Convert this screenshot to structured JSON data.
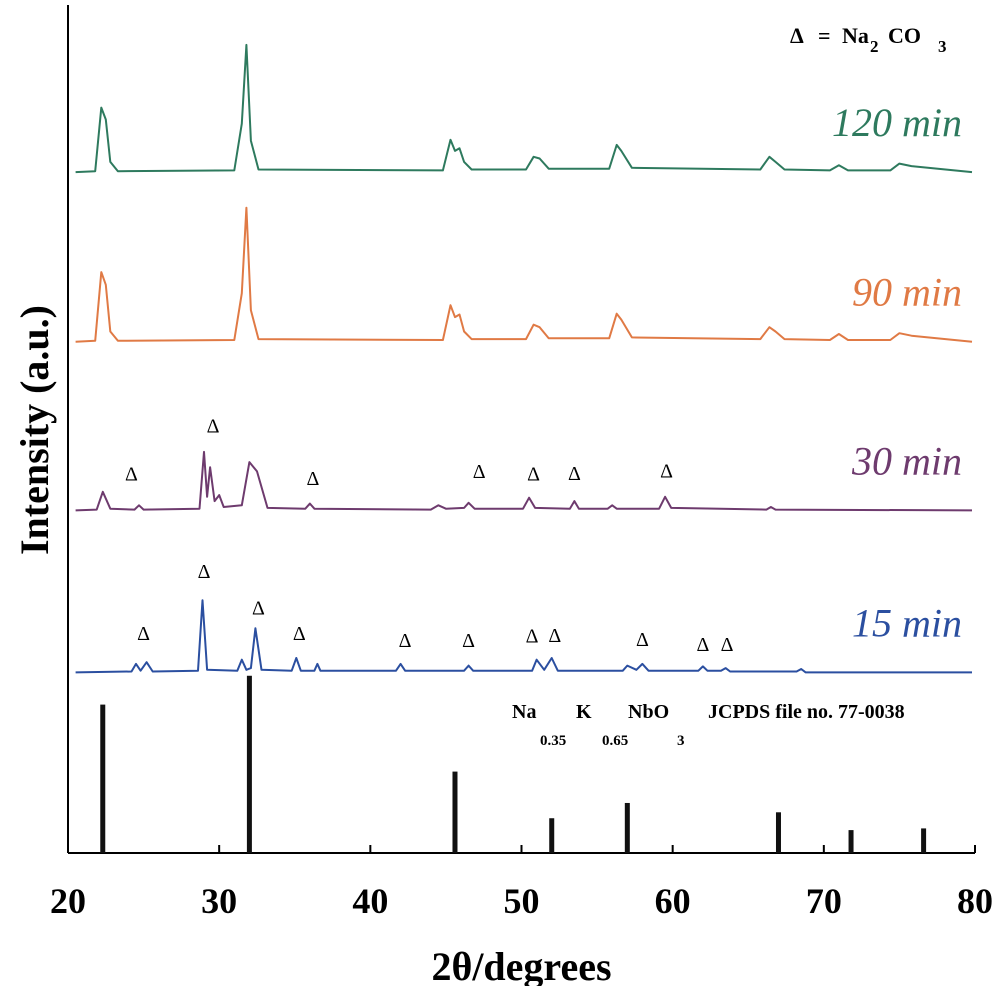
{
  "chart_data": {
    "type": "line",
    "xlabel": "2θ/degrees",
    "ylabel": "Intensity (a.u.)",
    "xlim": [
      20,
      80
    ],
    "xticks": [
      20,
      30,
      40,
      50,
      60,
      70,
      80
    ],
    "ylim": [
      0,
      100
    ],
    "note": [
      "Δ",
      "=",
      "Na",
      "2",
      "CO",
      "3"
    ],
    "series": [
      {
        "name": "120 min",
        "color": "#2e7a5e",
        "x": [
          20.5,
          21.8,
          22.2,
          22.5,
          22.8,
          23.3,
          31.0,
          31.5,
          31.8,
          32.1,
          32.6,
          44.8,
          45.3,
          45.6,
          45.9,
          46.2,
          46.7,
          50.3,
          50.8,
          51.2,
          51.8,
          55.8,
          56.3,
          56.6,
          57.3,
          65.8,
          66.4,
          66.8,
          67.4,
          70.4,
          71.0,
          71.6,
          74.4,
          75.0,
          75.8,
          79.8
        ],
        "values": [
          80.3,
          80.4,
          87.9,
          86.5,
          81.5,
          80.4,
          80.5,
          86,
          95.3,
          84,
          80.6,
          80.5,
          84.1,
          82.8,
          83.1,
          81.5,
          80.6,
          80.6,
          82.1,
          81.9,
          80.7,
          80.7,
          83.5,
          82.8,
          80.8,
          80.6,
          82.1,
          81.5,
          80.6,
          80.5,
          81.1,
          80.5,
          80.5,
          81.3,
          81,
          80.3
        ]
      },
      {
        "name": "90 min",
        "color": "#e07a45",
        "x": [
          20.5,
          21.8,
          22.2,
          22.5,
          22.8,
          23.3,
          31.0,
          31.5,
          31.8,
          32.1,
          32.6,
          44.8,
          45.3,
          45.6,
          45.9,
          46.2,
          46.7,
          50.3,
          50.8,
          51.2,
          51.8,
          55.8,
          56.3,
          56.6,
          57.3,
          65.8,
          66.4,
          66.8,
          67.4,
          70.4,
          71.0,
          71.6,
          74.4,
          75.0,
          75.8,
          79.8
        ],
        "values": [
          60.3,
          60.4,
          68.5,
          67,
          61.5,
          60.4,
          60.5,
          66,
          76.1,
          64,
          60.6,
          60.5,
          64.6,
          63.2,
          63.5,
          61.5,
          60.6,
          60.6,
          62.3,
          62,
          60.7,
          60.7,
          63.6,
          62.9,
          60.8,
          60.6,
          62.0,
          61.5,
          60.6,
          60.5,
          61.2,
          60.5,
          60.5,
          61.3,
          61,
          60.3
        ]
      },
      {
        "name": "30 min",
        "color": "#6e3b6e",
        "x": [
          20.5,
          21.9,
          22.3,
          22.8,
          24.4,
          24.7,
          25.0,
          28.7,
          29.0,
          29.2,
          29.4,
          29.7,
          30.0,
          30.3,
          31.5,
          32.0,
          32.5,
          33.2,
          35.7,
          36.0,
          36.3,
          44.0,
          44.5,
          45.0,
          46.2,
          46.5,
          46.9,
          50.1,
          50.5,
          50.9,
          53.2,
          53.5,
          53.8,
          55.7,
          56.0,
          56.3,
          59.1,
          59.5,
          59.9,
          66.2,
          66.5,
          66.8,
          79.8
        ],
        "values": [
          40.4,
          40.5,
          42.6,
          40.6,
          40.5,
          41.0,
          40.5,
          40.6,
          47.3,
          42,
          45.5,
          41.5,
          42.2,
          40.8,
          41,
          46.1,
          45,
          40.7,
          40.6,
          41.2,
          40.6,
          40.5,
          41.0,
          40.6,
          40.7,
          41.3,
          40.6,
          40.6,
          41.9,
          40.7,
          40.6,
          41.5,
          40.6,
          40.6,
          41.0,
          40.6,
          40.6,
          42.0,
          40.7,
          40.5,
          40.8,
          40.5,
          40.4
        ]
      },
      {
        "name": "15 min",
        "color": "#2b4fa0",
        "x": [
          20.5,
          24.2,
          24.5,
          24.8,
          25.2,
          25.6,
          28.6,
          28.9,
          29.2,
          31.2,
          31.5,
          31.8,
          32.1,
          32.4,
          32.8,
          34.8,
          35.1,
          35.4,
          36.3,
          36.5,
          36.7,
          41.7,
          42.0,
          42.3,
          46.2,
          46.5,
          46.8,
          50.7,
          51.0,
          51.5,
          52.0,
          52.4,
          56.7,
          57.0,
          57.6,
          58.0,
          58.4,
          61.7,
          62.0,
          62.3,
          63.2,
          63.5,
          63.8,
          68.2,
          68.5,
          68.8,
          79.8
        ],
        "values": [
          21.3,
          21.4,
          22.3,
          21.5,
          22.5,
          21.4,
          21.5,
          29.8,
          21.6,
          21.5,
          22.8,
          21.6,
          21.8,
          26.5,
          21.6,
          21.5,
          23.0,
          21.5,
          21.5,
          22.3,
          21.5,
          21.5,
          22.3,
          21.5,
          21.5,
          22.1,
          21.5,
          21.5,
          22.8,
          21.6,
          23.0,
          21.5,
          21.5,
          22.1,
          21.6,
          22.3,
          21.5,
          21.5,
          22.0,
          21.5,
          21.5,
          21.8,
          21.4,
          21.4,
          21.7,
          21.3,
          21.3
        ]
      }
    ],
    "markers": {
      "symbol": "Δ",
      "x": [
        24.2,
        29.6,
        36.2,
        47.2,
        50.8,
        53.5,
        59.6,
        25,
        29,
        32.6,
        35.3,
        42.3,
        46.5,
        50.7,
        52.2,
        58,
        62,
        63.6
      ],
      "values": [
        43.9,
        49.6,
        43.4,
        44.2,
        43.9,
        44.0,
        44.3,
        25.1,
        32.4,
        28.1,
        25.1,
        24.3,
        24.3,
        24.8,
        24.9,
        24.4,
        23.8,
        23.8
      ]
    },
    "reference": {
      "name": [
        "Na",
        "0.35",
        "K",
        "0.65",
        "NbO",
        "3",
        "JCPDS  file  no.  77-0038"
      ],
      "color": "#111111",
      "x": [
        22.3,
        32.0,
        45.6,
        52.0,
        57.0,
        67.0,
        71.8,
        76.6
      ],
      "values": [
        17.5,
        20.9,
        9.6,
        4.1,
        5.9,
        4.8,
        2.7,
        2.9
      ]
    }
  }
}
